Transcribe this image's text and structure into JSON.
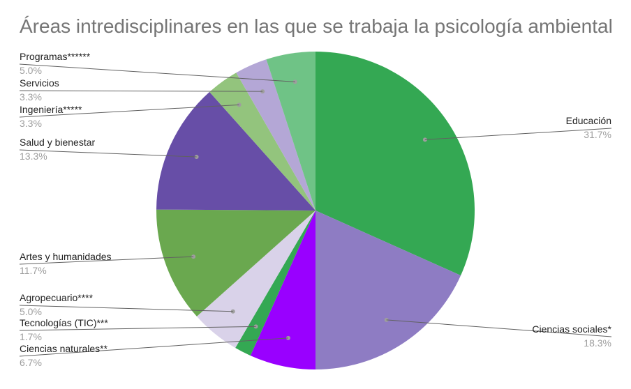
{
  "chart_data": {
    "type": "pie",
    "title": "Áreas intredisciplinares en las que se trabaja la psicología ambiental",
    "slices": [
      {
        "label": "Educación",
        "value": 31.7,
        "display": "31.7%",
        "color": "#34a853",
        "side": "right"
      },
      {
        "label": "Ciencias sociales*",
        "value": 18.3,
        "display": "18.3%",
        "color": "#8e7cc3",
        "side": "right"
      },
      {
        "label": "Ciencias naturales**",
        "value": 6.7,
        "display": "6.7%",
        "color": "#9900ff",
        "side": "left"
      },
      {
        "label": "Tecnologías (TIC)***",
        "value": 1.7,
        "display": "1.7%",
        "color": "#34a853",
        "side": "left"
      },
      {
        "label": "Agropecuario****",
        "value": 5.0,
        "display": "5.0%",
        "color": "#d9d2e9",
        "side": "left"
      },
      {
        "label": "Artes y humanidades",
        "value": 11.7,
        "display": "11.7%",
        "color": "#6aa84f",
        "side": "left"
      },
      {
        "label": "Salud y bienestar",
        "value": 13.3,
        "display": "13.3%",
        "color": "#674ea7",
        "side": "left"
      },
      {
        "label": "Ingeniería*****",
        "value": 3.3,
        "display": "3.3%",
        "color": "#93c47d",
        "side": "left"
      },
      {
        "label": "Servicios",
        "value": 3.3,
        "display": "3.3%",
        "color": "#b4a7d6",
        "side": "left"
      },
      {
        "label": "Programas******",
        "value": 5.0,
        "display": "5.0%",
        "color": "#6fc386",
        "side": "left"
      }
    ],
    "legend": "none"
  }
}
